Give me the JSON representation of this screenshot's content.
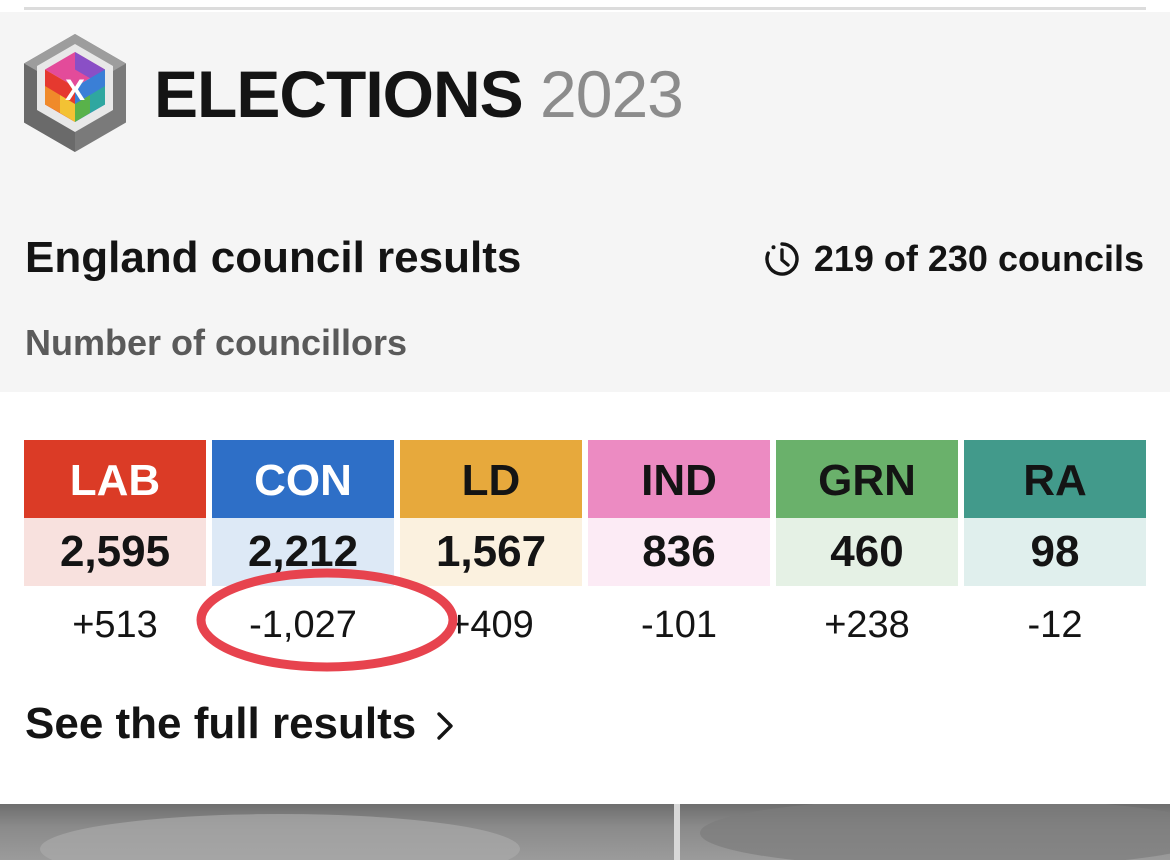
{
  "header": {
    "brand_word": "ELECTIONS",
    "brand_year": "2023"
  },
  "results": {
    "title": "England council results",
    "progress_icon": "clock-icon",
    "progress_text": "219 of 230 councils",
    "councils_declared": 219,
    "councils_total": 230,
    "subtitle": "Number of councillors",
    "parties": [
      {
        "abbr": "LAB",
        "seats": "2,595",
        "change": "+513",
        "color": "#db3b26",
        "tint": "#f8e1de",
        "text_color": "#ffffff"
      },
      {
        "abbr": "CON",
        "seats": "2,212",
        "change": "-1,027",
        "color": "#2e6fc7",
        "tint": "#dde9f6",
        "text_color": "#ffffff"
      },
      {
        "abbr": "LD",
        "seats": "1,567",
        "change": "+409",
        "color": "#e7a93c",
        "tint": "#fbf1df",
        "text_color": "#141414"
      },
      {
        "abbr": "IND",
        "seats": "836",
        "change": "-101",
        "color": "#ec8bc2",
        "tint": "#fcebf5",
        "text_color": "#141414"
      },
      {
        "abbr": "GRN",
        "seats": "460",
        "change": "+238",
        "color": "#6ab16b",
        "tint": "#e5f1e5",
        "text_color": "#141414"
      },
      {
        "abbr": "RA",
        "seats": "98",
        "change": "-12",
        "color": "#429a8b",
        "tint": "#e0efed",
        "text_color": "#141414"
      }
    ],
    "highlighted_party": "CON",
    "highlight_color": "#e7434e"
  },
  "link": {
    "full_results_label": "See the full results",
    "icon": "chevron-right-icon"
  }
}
